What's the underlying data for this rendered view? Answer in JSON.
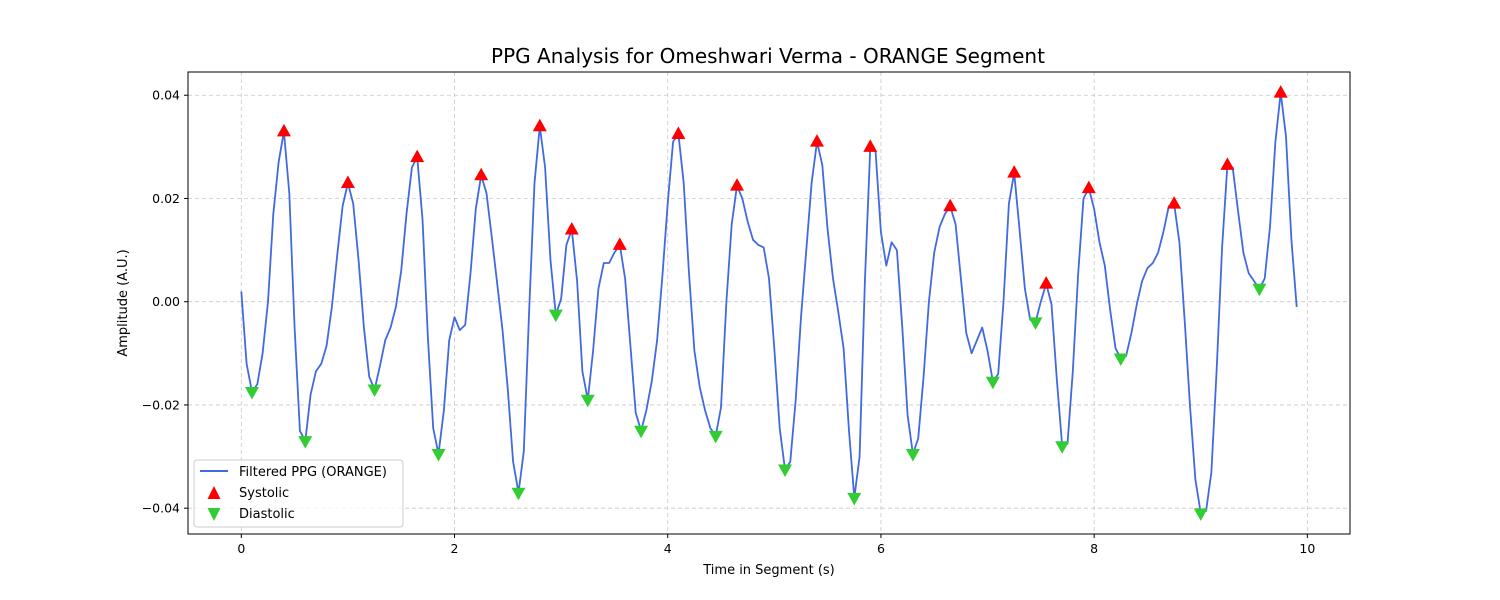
{
  "chart_data": {
    "type": "line",
    "title": "PPG Analysis for Omeshwari Verma - ORANGE Segment",
    "xlabel": "Time in Segment (s)",
    "ylabel": "Amplitude (A.U.)",
    "xlim": [
      -0.5,
      10.4
    ],
    "ylim": [
      -0.045,
      0.0445
    ],
    "xticks": [
      0,
      2,
      4,
      6,
      8,
      10
    ],
    "yticks": [
      -0.04,
      -0.02,
      0.0,
      0.02,
      0.04
    ],
    "xtick_labels": [
      "0",
      "2",
      "4",
      "6",
      "8",
      "10"
    ],
    "ytick_labels": [
      "−0.04",
      "−0.02",
      "0.00",
      "0.02",
      "0.04"
    ],
    "grid": true,
    "legend_position": "lower-left",
    "series": [
      {
        "name": "Filtered PPG (ORANGE)",
        "kind": "line",
        "color": "#4169e1",
        "x": [
          0.0,
          0.05,
          0.1,
          0.15,
          0.2,
          0.25,
          0.3,
          0.35,
          0.4,
          0.45,
          0.5,
          0.55,
          0.6,
          0.65,
          0.7,
          0.75,
          0.8,
          0.85,
          0.9,
          0.95,
          1.0,
          1.05,
          1.1,
          1.15,
          1.2,
          1.25,
          1.3,
          1.35,
          1.4,
          1.45,
          1.5,
          1.55,
          1.6,
          1.65,
          1.7,
          1.75,
          1.8,
          1.85,
          1.9,
          1.95,
          2.0,
          2.05,
          2.1,
          2.15,
          2.2,
          2.25,
          2.3,
          2.35,
          2.4,
          2.45,
          2.5,
          2.55,
          2.6,
          2.65,
          2.7,
          2.75,
          2.8,
          2.85,
          2.9,
          2.95,
          3.0,
          3.05,
          3.1,
          3.15,
          3.2,
          3.25,
          3.3,
          3.35,
          3.4,
          3.45,
          3.5,
          3.55,
          3.6,
          3.65,
          3.7,
          3.75,
          3.8,
          3.85,
          3.9,
          3.95,
          4.0,
          4.05,
          4.1,
          4.15,
          4.2,
          4.25,
          4.3,
          4.35,
          4.4,
          4.45,
          4.5,
          4.55,
          4.6,
          4.65,
          4.7,
          4.75,
          4.8,
          4.85,
          4.9,
          4.95,
          5.0,
          5.05,
          5.1,
          5.15,
          5.2,
          5.25,
          5.3,
          5.35,
          5.4,
          5.45,
          5.5,
          5.55,
          5.6,
          5.65,
          5.7,
          5.75,
          5.8,
          5.85,
          5.9,
          5.95,
          6.0,
          6.05,
          6.1,
          6.15,
          6.2,
          6.25,
          6.3,
          6.35,
          6.4,
          6.45,
          6.5,
          6.55,
          6.6,
          6.65,
          6.7,
          6.75,
          6.8,
          6.85,
          6.9,
          6.95,
          7.0,
          7.05,
          7.1,
          7.15,
          7.2,
          7.25,
          7.3,
          7.35,
          7.4,
          7.45,
          7.5,
          7.55,
          7.6,
          7.65,
          7.7,
          7.75,
          7.8,
          7.85,
          7.9,
          7.95,
          8.0,
          8.05,
          8.1,
          8.15,
          8.2,
          8.25,
          8.3,
          8.35,
          8.4,
          8.45,
          8.5,
          8.55,
          8.6,
          8.65,
          8.7,
          8.75,
          8.8,
          8.85,
          8.9,
          8.95,
          9.0,
          9.05,
          9.1,
          9.15,
          9.2,
          9.25,
          9.3,
          9.35,
          9.4,
          9.45,
          9.5,
          9.55,
          9.6,
          9.65,
          9.7,
          9.75,
          9.8,
          9.85,
          9.9
        ],
        "y": [
          0.002,
          -0.012,
          -0.0175,
          -0.016,
          -0.01,
          0.0,
          0.017,
          0.027,
          0.033,
          0.021,
          -0.005,
          -0.025,
          -0.027,
          -0.018,
          -0.0135,
          -0.012,
          -0.0085,
          -0.001,
          0.009,
          0.0185,
          0.023,
          0.019,
          0.008,
          -0.005,
          -0.0145,
          -0.017,
          -0.0125,
          -0.0075,
          -0.005,
          -0.001,
          0.006,
          0.017,
          0.026,
          0.028,
          0.016,
          -0.007,
          -0.0245,
          -0.0295,
          -0.021,
          -0.0075,
          -0.003,
          -0.0055,
          -0.0045,
          0.0055,
          0.018,
          0.0245,
          0.021,
          0.0125,
          0.0035,
          -0.0055,
          -0.017,
          -0.031,
          -0.037,
          -0.029,
          -0.002,
          0.023,
          0.034,
          0.026,
          0.008,
          -0.0025,
          0.0005,
          0.011,
          0.014,
          0.004,
          -0.0135,
          -0.019,
          -0.0095,
          0.0025,
          0.0075,
          0.0075,
          0.0095,
          0.011,
          0.0045,
          -0.0085,
          -0.0215,
          -0.025,
          -0.021,
          -0.0155,
          -0.0075,
          0.005,
          0.019,
          0.031,
          0.0325,
          0.023,
          0.0055,
          -0.0095,
          -0.0165,
          -0.021,
          -0.0245,
          -0.026,
          -0.0205,
          0.0,
          0.015,
          0.0225,
          0.02,
          0.0155,
          0.012,
          0.011,
          0.0105,
          0.0045,
          -0.009,
          -0.0245,
          -0.0325,
          -0.031,
          -0.019,
          -0.003,
          0.01,
          0.023,
          0.031,
          0.0265,
          0.014,
          0.0045,
          -0.002,
          -0.009,
          -0.025,
          -0.038,
          -0.03,
          0.004,
          0.03,
          0.029,
          0.0135,
          0.007,
          0.0115,
          0.01,
          -0.005,
          -0.022,
          -0.0295,
          -0.0265,
          -0.0145,
          0.0,
          0.0095,
          0.0145,
          0.017,
          0.0185,
          0.015,
          0.0045,
          -0.006,
          -0.01,
          -0.0075,
          -0.005,
          -0.0095,
          -0.0155,
          -0.014,
          0.0,
          0.019,
          0.025,
          0.014,
          0.0025,
          -0.0035,
          -0.004,
          0.0,
          0.0035,
          -0.0005,
          -0.015,
          -0.028,
          -0.0275,
          -0.0135,
          0.0055,
          0.02,
          0.022,
          0.018,
          0.0115,
          0.007,
          -0.0015,
          -0.009,
          -0.011,
          -0.0105,
          -0.006,
          -0.0005,
          0.004,
          0.0065,
          0.0075,
          0.0095,
          0.0135,
          0.0185,
          0.019,
          0.0115,
          -0.004,
          -0.0205,
          -0.0345,
          -0.041,
          -0.0405,
          -0.033,
          -0.013,
          0.0105,
          0.0265,
          0.026,
          0.0175,
          0.0095,
          0.0055,
          0.004,
          0.0025,
          0.0045,
          0.0145,
          0.031,
          0.0405,
          0.032,
          0.012,
          -0.001
        ]
      },
      {
        "name": "Systolic",
        "kind": "markers",
        "marker": "triangle-up",
        "color": "#ff0000",
        "x": [
          0.4,
          1.0,
          1.65,
          2.25,
          2.8,
          3.1,
          3.55,
          4.1,
          4.65,
          5.4,
          5.9,
          6.65,
          7.25,
          7.55,
          7.95,
          8.75,
          9.25,
          9.75
        ],
        "y": [
          0.033,
          0.023,
          0.028,
          0.0245,
          0.034,
          0.014,
          0.011,
          0.0325,
          0.0225,
          0.031,
          0.03,
          0.0185,
          0.025,
          0.0035,
          0.022,
          0.019,
          0.0265,
          0.0405
        ]
      },
      {
        "name": "Diastolic",
        "kind": "markers",
        "marker": "triangle-down",
        "color": "#32cd32",
        "x": [
          0.1,
          0.6,
          1.25,
          1.85,
          2.6,
          2.95,
          3.25,
          3.75,
          4.45,
          5.1,
          5.75,
          6.3,
          7.05,
          7.45,
          7.7,
          8.25,
          9.0,
          9.55
        ],
        "y": [
          -0.0175,
          -0.027,
          -0.017,
          -0.0295,
          -0.037,
          -0.0025,
          -0.019,
          -0.025,
          -0.026,
          -0.0325,
          -0.038,
          -0.0295,
          -0.0155,
          -0.004,
          -0.028,
          -0.011,
          -0.041,
          0.0025
        ]
      }
    ]
  }
}
